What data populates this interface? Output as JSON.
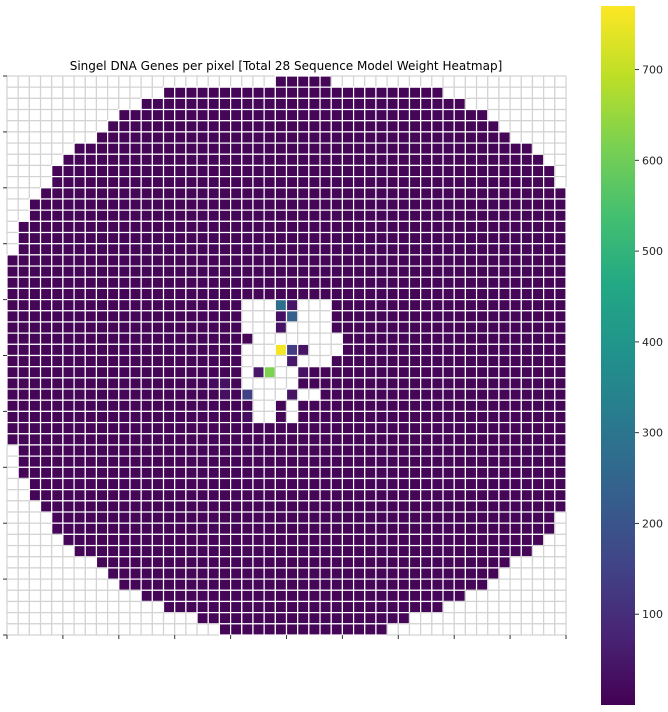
{
  "chart_data": {
    "type": "heatmap",
    "title": "Singel DNA Genes per pixel [Total 28 Sequence Model Weight Heatmap]",
    "grid_size": [
      50,
      50
    ],
    "colormap": "viridis",
    "colorbar": {
      "vmin": 0,
      "vmax": 770,
      "ticks": [
        100,
        200,
        300,
        400,
        500,
        600,
        700
      ]
    },
    "background_value": 10,
    "cell_border_color": "#d3d3d3",
    "circle_rows": [
      [
        24,
        29
      ],
      [
        14,
        39
      ],
      [
        12,
        41
      ],
      [
        10,
        43
      ],
      [
        9,
        44
      ],
      [
        8,
        45
      ],
      [
        6,
        47
      ],
      [
        5,
        48
      ],
      [
        4,
        49
      ],
      [
        4,
        49
      ],
      [
        3,
        50
      ],
      [
        2,
        51
      ],
      [
        2,
        51
      ],
      [
        1,
        52
      ],
      [
        1,
        52
      ],
      [
        1,
        52
      ],
      [
        0,
        53
      ],
      [
        0,
        53
      ],
      [
        0,
        53
      ],
      [
        0,
        53
      ],
      [
        0,
        53
      ],
      [
        0,
        53
      ],
      [
        0,
        53
      ],
      [
        0,
        53
      ],
      [
        0,
        53
      ],
      [
        0,
        54
      ],
      [
        0,
        53
      ],
      [
        0,
        53
      ],
      [
        0,
        53
      ],
      [
        0,
        53
      ],
      [
        0,
        53
      ],
      [
        0,
        53
      ],
      [
        0,
        53
      ],
      [
        1,
        52
      ],
      [
        1,
        52
      ],
      [
        1,
        52
      ],
      [
        2,
        51
      ],
      [
        2,
        51
      ],
      [
        3,
        50
      ],
      [
        4,
        49
      ],
      [
        4,
        49
      ],
      [
        5,
        48
      ],
      [
        6,
        47
      ],
      [
        8,
        45
      ],
      [
        9,
        44
      ],
      [
        10,
        43
      ],
      [
        12,
        41
      ],
      [
        14,
        39
      ],
      [
        17,
        36
      ],
      [
        19,
        34
      ],
      [
        24,
        25
      ]
    ],
    "empty_cells": [
      [
        20,
        21
      ],
      [
        20,
        22
      ],
      [
        20,
        23
      ],
      [
        20,
        26
      ],
      [
        20,
        27
      ],
      [
        20,
        28
      ],
      [
        21,
        21
      ],
      [
        21,
        22
      ],
      [
        21,
        23
      ],
      [
        21,
        26
      ],
      [
        21,
        27
      ],
      [
        21,
        28
      ],
      [
        22,
        21
      ],
      [
        22,
        22
      ],
      [
        22,
        23
      ],
      [
        22,
        25
      ],
      [
        22,
        26
      ],
      [
        22,
        27
      ],
      [
        22,
        28
      ],
      [
        23,
        22
      ],
      [
        23,
        23
      ],
      [
        23,
        24
      ],
      [
        23,
        25
      ],
      [
        23,
        26
      ],
      [
        23,
        27
      ],
      [
        23,
        28
      ],
      [
        23,
        29
      ],
      [
        24,
        21
      ],
      [
        24,
        22
      ],
      [
        24,
        23
      ],
      [
        24,
        27
      ],
      [
        24,
        28
      ],
      [
        24,
        29
      ],
      [
        25,
        21
      ],
      [
        25,
        22
      ],
      [
        25,
        23
      ],
      [
        25,
        24
      ],
      [
        25,
        26
      ],
      [
        25,
        27
      ],
      [
        25,
        28
      ],
      [
        26,
        21
      ],
      [
        26,
        24
      ],
      [
        26,
        25
      ],
      [
        27,
        21
      ],
      [
        27,
        22
      ],
      [
        27,
        23
      ],
      [
        27,
        24
      ],
      [
        27,
        25
      ],
      [
        28,
        22
      ],
      [
        28,
        23
      ],
      [
        28,
        24
      ],
      [
        28,
        26
      ],
      [
        28,
        27
      ],
      [
        29,
        22
      ],
      [
        29,
        23
      ],
      [
        29,
        25
      ],
      [
        30,
        22
      ],
      [
        30,
        23
      ],
      [
        30,
        25
      ]
    ],
    "highlight_cells": [
      [
        20,
        24,
        280
      ],
      [
        20,
        25,
        45
      ],
      [
        21,
        24,
        30
      ],
      [
        21,
        25,
        230
      ],
      [
        22,
        21,
        640
      ],
      [
        22,
        24,
        40
      ],
      [
        22,
        27,
        250
      ],
      [
        24,
        24,
        760
      ],
      [
        24,
        25,
        140
      ],
      [
        24,
        26,
        40
      ],
      [
        25,
        23,
        270
      ],
      [
        25,
        25,
        50
      ],
      [
        25,
        28,
        640
      ],
      [
        26,
        22,
        50
      ],
      [
        26,
        23,
        620
      ],
      [
        26,
        26,
        40
      ],
      [
        27,
        21,
        130
      ],
      [
        27,
        24,
        60
      ],
      [
        28,
        21,
        150
      ],
      [
        28,
        25,
        40
      ],
      [
        29,
        22,
        170
      ],
      [
        29,
        23,
        190
      ],
      [
        30,
        22,
        140
      ],
      [
        30,
        23,
        170
      ],
      [
        27,
        18,
        20
      ],
      [
        27,
        19,
        35
      ],
      [
        28,
        19,
        30
      ],
      [
        30,
        21,
        25
      ]
    ]
  }
}
